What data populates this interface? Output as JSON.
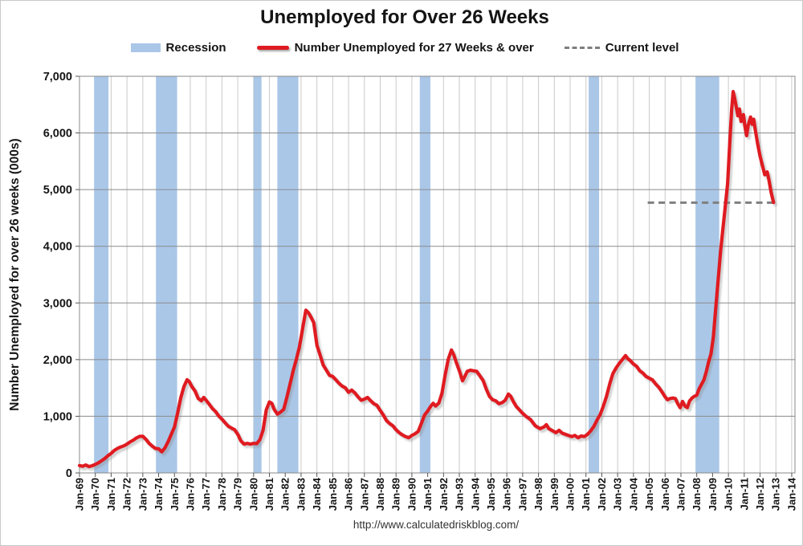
{
  "header": {
    "title": "Unemployed for Over 26 Weeks"
  },
  "legend": {
    "recession_label": "Recession",
    "series_label": "Number Unemployed for 27 Weeks & over",
    "current_level_label": "Current level"
  },
  "footer": {
    "url": "http://www.calculatedriskblog.com/"
  },
  "colors": {
    "series_red": "#df1b21",
    "recession_blue": "#aac7e8",
    "current_level_gray": "#7f7f7f",
    "h_grid": "#8a8a8a",
    "v_grid": "#cacaca",
    "border": "#8a8a8a",
    "tick": "#555555"
  },
  "chart_data": {
    "type": "line",
    "title": "Unemployed for Over 26 Weeks",
    "xlabel": "",
    "ylabel": "Number Unemployed for over 26 weeks (000s)",
    "xlim": [
      1969,
      2014.3
    ],
    "ylim": [
      0,
      7000
    ],
    "grid": true,
    "legend_position": "top",
    "x_tick_labels": [
      "Jan-69",
      "Jan-70",
      "Jan-71",
      "Jan-72",
      "Jan-73",
      "Jan-74",
      "Jan-75",
      "Jan-76",
      "Jan-77",
      "Jan-78",
      "Jan-79",
      "Jan-80",
      "Jan-81",
      "Jan-82",
      "Jan-83",
      "Jan-84",
      "Jan-85",
      "Jan-86",
      "Jan-87",
      "Jan-88",
      "Jan-89",
      "Jan-90",
      "Jan-91",
      "Jan-92",
      "Jan-93",
      "Jan-94",
      "Jan-95",
      "Jan-96",
      "Jan-97",
      "Jan-98",
      "Jan-99",
      "Jan-00",
      "Jan-01",
      "Jan-02",
      "Jan-03",
      "Jan-04",
      "Jan-05",
      "Jan-06",
      "Jan-07",
      "Jan-08",
      "Jan-09",
      "Jan-10",
      "Jan-11",
      "Jan-12",
      "Jan-13",
      "Jan-14"
    ],
    "x_tick_years": [
      1969,
      1970,
      1971,
      1972,
      1973,
      1974,
      1975,
      1976,
      1977,
      1978,
      1979,
      1980,
      1981,
      1982,
      1983,
      1984,
      1985,
      1986,
      1987,
      1988,
      1989,
      1990,
      1991,
      1992,
      1993,
      1994,
      1995,
      1996,
      1997,
      1998,
      1999,
      2000,
      2001,
      2002,
      2003,
      2004,
      2005,
      2006,
      2007,
      2008,
      2009,
      2010,
      2011,
      2012,
      2013,
      2014
    ],
    "y_ticks": [
      0,
      1000,
      2000,
      3000,
      4000,
      5000,
      6000,
      7000
    ],
    "y_tick_labels": [
      "0",
      "1,000",
      "2,000",
      "3,000",
      "4,000",
      "5,000",
      "6,000",
      "7,000"
    ],
    "recessions": {
      "label": "Recession",
      "bands": [
        [
          1969.92,
          1970.83
        ],
        [
          1973.83,
          1975.17
        ],
        [
          1980.0,
          1980.5
        ],
        [
          1981.5,
          1982.83
        ],
        [
          1990.5,
          1991.17
        ],
        [
          2001.17,
          2001.83
        ],
        [
          2007.92,
          2009.42
        ]
      ]
    },
    "current_level": {
      "label": "Current level",
      "value": 4770,
      "x_start": 2004.9,
      "x_end": 2013.05
    },
    "series": [
      {
        "name": "Number Unemployed for 27 Weeks & over",
        "points": [
          [
            1969.0,
            130
          ],
          [
            1969.2,
            118
          ],
          [
            1969.4,
            140
          ],
          [
            1969.6,
            112
          ],
          [
            1969.8,
            128
          ],
          [
            1970.0,
            150
          ],
          [
            1970.2,
            178
          ],
          [
            1970.4,
            215
          ],
          [
            1970.6,
            255
          ],
          [
            1970.8,
            305
          ],
          [
            1971.0,
            345
          ],
          [
            1971.2,
            398
          ],
          [
            1971.4,
            432
          ],
          [
            1971.6,
            458
          ],
          [
            1971.8,
            478
          ],
          [
            1972.0,
            508
          ],
          [
            1972.2,
            548
          ],
          [
            1972.4,
            578
          ],
          [
            1972.6,
            618
          ],
          [
            1972.8,
            645
          ],
          [
            1973.0,
            648
          ],
          [
            1973.2,
            592
          ],
          [
            1973.4,
            522
          ],
          [
            1973.6,
            472
          ],
          [
            1973.8,
            432
          ],
          [
            1974.0,
            425
          ],
          [
            1974.2,
            372
          ],
          [
            1974.4,
            442
          ],
          [
            1974.6,
            552
          ],
          [
            1974.8,
            682
          ],
          [
            1975.0,
            812
          ],
          [
            1975.2,
            1055
          ],
          [
            1975.4,
            1325
          ],
          [
            1975.6,
            1525
          ],
          [
            1975.8,
            1645
          ],
          [
            1975.95,
            1605
          ],
          [
            1976.1,
            1525
          ],
          [
            1976.3,
            1445
          ],
          [
            1976.5,
            1315
          ],
          [
            1976.7,
            1272
          ],
          [
            1976.85,
            1332
          ],
          [
            1977.0,
            1282
          ],
          [
            1977.2,
            1212
          ],
          [
            1977.4,
            1135
          ],
          [
            1977.6,
            1082
          ],
          [
            1977.8,
            1005
          ],
          [
            1978.0,
            950
          ],
          [
            1978.2,
            885
          ],
          [
            1978.4,
            825
          ],
          [
            1978.6,
            792
          ],
          [
            1978.8,
            762
          ],
          [
            1979.0,
            682
          ],
          [
            1979.2,
            565
          ],
          [
            1979.4,
            508
          ],
          [
            1979.6,
            522
          ],
          [
            1979.8,
            508
          ],
          [
            1980.0,
            522
          ],
          [
            1980.2,
            518
          ],
          [
            1980.4,
            588
          ],
          [
            1980.6,
            752
          ],
          [
            1980.8,
            1112
          ],
          [
            1981.0,
            1252
          ],
          [
            1981.15,
            1228
          ],
          [
            1981.3,
            1122
          ],
          [
            1981.5,
            1038
          ],
          [
            1981.7,
            1072
          ],
          [
            1981.9,
            1122
          ],
          [
            1982.1,
            1332
          ],
          [
            1982.3,
            1562
          ],
          [
            1982.5,
            1802
          ],
          [
            1982.7,
            2002
          ],
          [
            1982.9,
            2232
          ],
          [
            1983.1,
            2552
          ],
          [
            1983.3,
            2872
          ],
          [
            1983.45,
            2832
          ],
          [
            1983.6,
            2762
          ],
          [
            1983.8,
            2652
          ],
          [
            1984.0,
            2252
          ],
          [
            1984.2,
            2082
          ],
          [
            1984.4,
            1902
          ],
          [
            1984.6,
            1812
          ],
          [
            1984.8,
            1722
          ],
          [
            1985.0,
            1702
          ],
          [
            1985.2,
            1642
          ],
          [
            1985.4,
            1582
          ],
          [
            1985.6,
            1532
          ],
          [
            1985.8,
            1502
          ],
          [
            1986.0,
            1422
          ],
          [
            1986.2,
            1462
          ],
          [
            1986.4,
            1412
          ],
          [
            1986.6,
            1342
          ],
          [
            1986.8,
            1282
          ],
          [
            1987.0,
            1302
          ],
          [
            1987.2,
            1332
          ],
          [
            1987.4,
            1272
          ],
          [
            1987.6,
            1222
          ],
          [
            1987.8,
            1192
          ],
          [
            1988.0,
            1102
          ],
          [
            1988.2,
            1022
          ],
          [
            1988.4,
            922
          ],
          [
            1988.6,
            872
          ],
          [
            1988.8,
            832
          ],
          [
            1989.0,
            762
          ],
          [
            1989.2,
            712
          ],
          [
            1989.4,
            672
          ],
          [
            1989.6,
            642
          ],
          [
            1989.8,
            622
          ],
          [
            1990.0,
            662
          ],
          [
            1990.2,
            692
          ],
          [
            1990.4,
            732
          ],
          [
            1990.6,
            872
          ],
          [
            1990.8,
            1022
          ],
          [
            1991.0,
            1092
          ],
          [
            1991.2,
            1180
          ],
          [
            1991.35,
            1230
          ],
          [
            1991.5,
            1180
          ],
          [
            1991.7,
            1232
          ],
          [
            1991.9,
            1405
          ],
          [
            1992.1,
            1725
          ],
          [
            1992.3,
            2005
          ],
          [
            1992.5,
            2170
          ],
          [
            1992.65,
            2085
          ],
          [
            1992.8,
            1955
          ],
          [
            1993.0,
            1805
          ],
          [
            1993.2,
            1625
          ],
          [
            1993.35,
            1705
          ],
          [
            1993.5,
            1792
          ],
          [
            1993.7,
            1812
          ],
          [
            1993.9,
            1802
          ],
          [
            1994.1,
            1792
          ],
          [
            1994.3,
            1712
          ],
          [
            1994.5,
            1632
          ],
          [
            1994.7,
            1482
          ],
          [
            1994.9,
            1352
          ],
          [
            1995.1,
            1292
          ],
          [
            1995.3,
            1272
          ],
          [
            1995.5,
            1222
          ],
          [
            1995.7,
            1242
          ],
          [
            1995.9,
            1282
          ],
          [
            1996.1,
            1392
          ],
          [
            1996.25,
            1352
          ],
          [
            1996.4,
            1262
          ],
          [
            1996.6,
            1172
          ],
          [
            1996.8,
            1112
          ],
          [
            1997.0,
            1052
          ],
          [
            1997.2,
            1002
          ],
          [
            1997.5,
            942
          ],
          [
            1997.8,
            832
          ],
          [
            1998.1,
            782
          ],
          [
            1998.35,
            812
          ],
          [
            1998.5,
            852
          ],
          [
            1998.65,
            782
          ],
          [
            1998.9,
            742
          ],
          [
            1999.1,
            712
          ],
          [
            1999.3,
            752
          ],
          [
            1999.5,
            702
          ],
          [
            1999.7,
            682
          ],
          [
            1999.9,
            662
          ],
          [
            2000.1,
            642
          ],
          [
            2000.3,
            662
          ],
          [
            2000.5,
            622
          ],
          [
            2000.7,
            652
          ],
          [
            2000.9,
            642
          ],
          [
            2001.1,
            682
          ],
          [
            2001.3,
            742
          ],
          [
            2001.5,
            822
          ],
          [
            2001.7,
            932
          ],
          [
            2001.9,
            1032
          ],
          [
            2002.1,
            1182
          ],
          [
            2002.3,
            1352
          ],
          [
            2002.5,
            1572
          ],
          [
            2002.7,
            1752
          ],
          [
            2002.9,
            1852
          ],
          [
            2003.1,
            1932
          ],
          [
            2003.3,
            2002
          ],
          [
            2003.5,
            2072
          ],
          [
            2003.65,
            2012
          ],
          [
            2003.8,
            1982
          ],
          [
            2004.0,
            1922
          ],
          [
            2004.2,
            1882
          ],
          [
            2004.4,
            1802
          ],
          [
            2004.6,
            1762
          ],
          [
            2004.8,
            1702
          ],
          [
            2005.0,
            1672
          ],
          [
            2005.2,
            1642
          ],
          [
            2005.4,
            1572
          ],
          [
            2005.6,
            1512
          ],
          [
            2005.8,
            1432
          ],
          [
            2006.0,
            1342
          ],
          [
            2006.15,
            1292
          ],
          [
            2006.3,
            1312
          ],
          [
            2006.5,
            1322
          ],
          [
            2006.65,
            1312
          ],
          [
            2006.8,
            1222
          ],
          [
            2006.95,
            1152
          ],
          [
            2007.1,
            1262
          ],
          [
            2007.25,
            1182
          ],
          [
            2007.4,
            1152
          ],
          [
            2007.55,
            1272
          ],
          [
            2007.7,
            1322
          ],
          [
            2007.85,
            1352
          ],
          [
            2008.0,
            1372
          ],
          [
            2008.15,
            1482
          ],
          [
            2008.3,
            1562
          ],
          [
            2008.45,
            1642
          ],
          [
            2008.6,
            1782
          ],
          [
            2008.75,
            1962
          ],
          [
            2008.9,
            2102
          ],
          [
            2009.05,
            2402
          ],
          [
            2009.2,
            2902
          ],
          [
            2009.35,
            3402
          ],
          [
            2009.5,
            3902
          ],
          [
            2009.65,
            4302
          ],
          [
            2009.8,
            4702
          ],
          [
            2009.95,
            5102
          ],
          [
            2010.1,
            5902
          ],
          [
            2010.2,
            6402
          ],
          [
            2010.3,
            6730
          ],
          [
            2010.4,
            6602
          ],
          [
            2010.5,
            6452
          ],
          [
            2010.6,
            6302
          ],
          [
            2010.7,
            6422
          ],
          [
            2010.8,
            6202
          ],
          [
            2010.95,
            6322
          ],
          [
            2011.05,
            6102
          ],
          [
            2011.15,
            5952
          ],
          [
            2011.25,
            6132
          ],
          [
            2011.4,
            6282
          ],
          [
            2011.5,
            6152
          ],
          [
            2011.6,
            6242
          ],
          [
            2011.7,
            6052
          ],
          [
            2011.85,
            5802
          ],
          [
            2012.0,
            5592
          ],
          [
            2012.15,
            5422
          ],
          [
            2012.3,
            5262
          ],
          [
            2012.45,
            5312
          ],
          [
            2012.55,
            5182
          ],
          [
            2012.7,
            4952
          ],
          [
            2012.85,
            4772
          ]
        ]
      }
    ]
  }
}
